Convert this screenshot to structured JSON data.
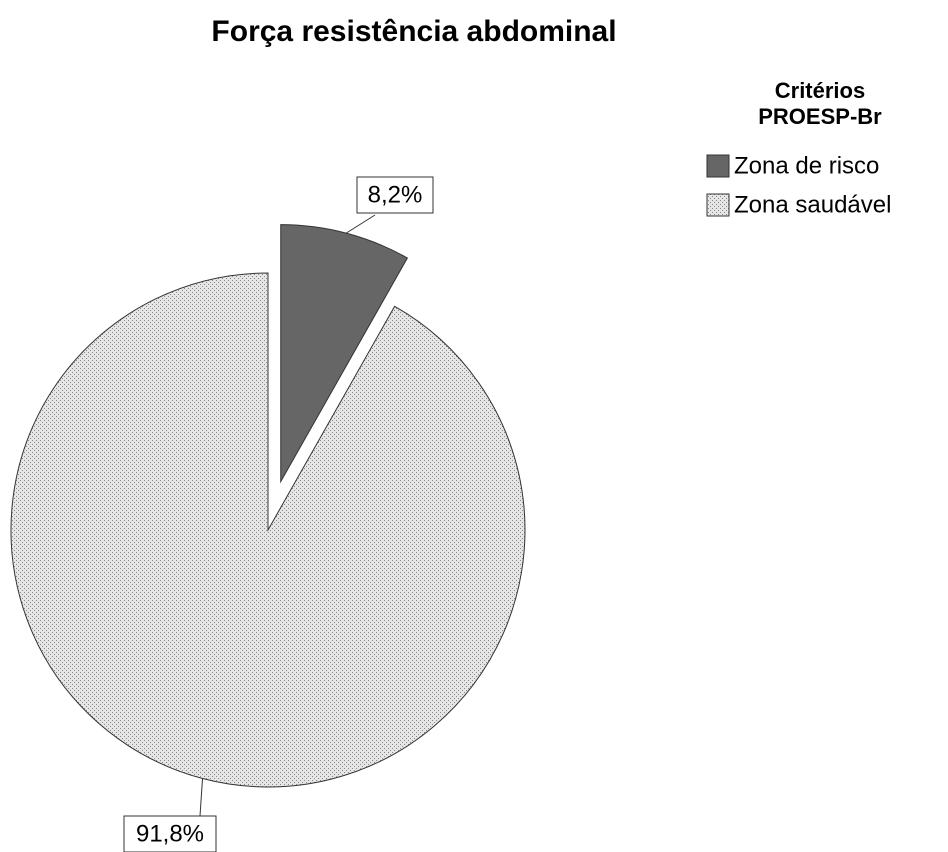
{
  "chart_data": {
    "type": "pie",
    "title": "Força resistência abdominal",
    "legend_title": "Critérios PROESP-Br",
    "categories": [
      "Zona de risco",
      "Zona saudável"
    ],
    "values": [
      8.2,
      91.8
    ],
    "value_labels": [
      "8,2%",
      "91,8%"
    ],
    "colors": [
      "#666666",
      "#d9d9d9"
    ],
    "exploded": [
      true,
      false
    ],
    "legend": "top-right"
  }
}
